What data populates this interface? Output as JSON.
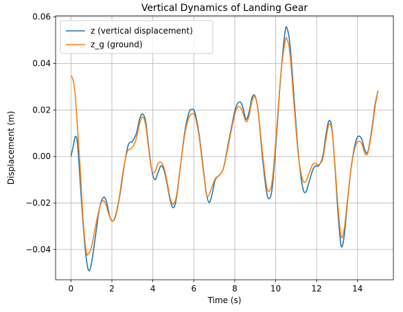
{
  "chart_data": {
    "type": "line",
    "title": "Vertical Dynamics of Landing Gear",
    "xlabel": "Time (s)",
    "ylabel": "Displacement (m)",
    "xlim": [
      -0.75,
      15.75
    ],
    "ylim": [
      -0.053,
      0.0605
    ],
    "xticks": [
      0,
      2,
      4,
      6,
      8,
      10,
      12,
      14
    ],
    "yticks": [
      -0.04,
      -0.02,
      0.0,
      0.02,
      0.04,
      0.06
    ],
    "ytick_labels": [
      "−0.04",
      "−0.02",
      "0.00",
      "0.02",
      "0.04",
      "0.06"
    ],
    "grid": true,
    "legend_position": "top-left",
    "series": [
      {
        "name": "z (vertical displacement)",
        "color": "#1f77b4",
        "points": [
          [
            0.0,
            0.0
          ],
          [
            0.1,
            0.004
          ],
          [
            0.2,
            0.0083
          ],
          [
            0.3,
            0.007
          ],
          [
            0.4,
            -0.004
          ],
          [
            0.55,
            -0.024
          ],
          [
            0.7,
            -0.04
          ],
          [
            0.85,
            -0.0488
          ],
          [
            1.0,
            -0.046
          ],
          [
            1.2,
            -0.034
          ],
          [
            1.4,
            -0.022
          ],
          [
            1.6,
            -0.0175
          ],
          [
            1.75,
            -0.02
          ],
          [
            1.9,
            -0.026
          ],
          [
            2.05,
            -0.0278
          ],
          [
            2.2,
            -0.025
          ],
          [
            2.4,
            -0.016
          ],
          [
            2.6,
            -0.004
          ],
          [
            2.8,
            0.005
          ],
          [
            3.0,
            0.0065
          ],
          [
            3.2,
            0.01
          ],
          [
            3.35,
            0.016
          ],
          [
            3.5,
            0.0183
          ],
          [
            3.65,
            0.015
          ],
          [
            3.8,
            0.004
          ],
          [
            3.95,
            -0.006
          ],
          [
            4.1,
            -0.01
          ],
          [
            4.25,
            -0.007
          ],
          [
            4.4,
            -0.004
          ],
          [
            4.55,
            -0.006
          ],
          [
            4.7,
            -0.012
          ],
          [
            4.85,
            -0.019
          ],
          [
            5.0,
            -0.022
          ],
          [
            5.15,
            -0.018
          ],
          [
            5.35,
            -0.004
          ],
          [
            5.55,
            0.01
          ],
          [
            5.75,
            0.0185
          ],
          [
            5.9,
            0.0203
          ],
          [
            6.05,
            0.019
          ],
          [
            6.25,
            0.01
          ],
          [
            6.45,
            -0.004
          ],
          [
            6.6,
            -0.015
          ],
          [
            6.75,
            -0.0198
          ],
          [
            6.9,
            -0.016
          ],
          [
            7.05,
            -0.01
          ],
          [
            7.25,
            -0.008
          ],
          [
            7.45,
            -0.005
          ],
          [
            7.65,
            0.004
          ],
          [
            7.85,
            0.013
          ],
          [
            8.05,
            0.021
          ],
          [
            8.25,
            0.0235
          ],
          [
            8.4,
            0.021
          ],
          [
            8.55,
            0.016
          ],
          [
            8.7,
            0.019
          ],
          [
            8.85,
            0.0255
          ],
          [
            9.0,
            0.0258
          ],
          [
            9.15,
            0.019
          ],
          [
            9.35,
            0.0
          ],
          [
            9.55,
            -0.015
          ],
          [
            9.7,
            -0.018
          ],
          [
            9.85,
            -0.012
          ],
          [
            10.05,
            0.01
          ],
          [
            10.25,
            0.035
          ],
          [
            10.45,
            0.053
          ],
          [
            10.55,
            0.0552
          ],
          [
            10.7,
            0.048
          ],
          [
            10.9,
            0.025
          ],
          [
            11.1,
            0.002
          ],
          [
            11.3,
            -0.0125
          ],
          [
            11.45,
            -0.0155
          ],
          [
            11.6,
            -0.012
          ],
          [
            11.8,
            -0.006
          ],
          [
            11.95,
            -0.004
          ],
          [
            12.1,
            -0.004
          ],
          [
            12.3,
            0.0
          ],
          [
            12.45,
            0.009
          ],
          [
            12.6,
            0.0153
          ],
          [
            12.75,
            0.012
          ],
          [
            12.9,
            -0.005
          ],
          [
            13.05,
            -0.025
          ],
          [
            13.2,
            -0.0385
          ],
          [
            13.35,
            -0.034
          ],
          [
            13.5,
            -0.02
          ],
          [
            13.7,
            -0.004
          ],
          [
            13.9,
            0.006
          ],
          [
            14.05,
            0.0087
          ],
          [
            14.2,
            0.0075
          ],
          [
            14.35,
            0.003
          ],
          [
            14.5,
            0.002
          ],
          [
            14.7,
            0.012
          ],
          [
            14.85,
            0.022
          ],
          [
            15.0,
            0.0283
          ]
        ]
      },
      {
        "name": "z_g (ground)",
        "color": "#ff7f0e",
        "points": [
          [
            0.0,
            0.0348
          ],
          [
            0.1,
            0.033
          ],
          [
            0.2,
            0.027
          ],
          [
            0.3,
            0.015
          ],
          [
            0.45,
            -0.005
          ],
          [
            0.6,
            -0.028
          ],
          [
            0.75,
            -0.041
          ],
          [
            0.85,
            -0.0418
          ],
          [
            1.0,
            -0.039
          ],
          [
            1.2,
            -0.03
          ],
          [
            1.4,
            -0.022
          ],
          [
            1.55,
            -0.019
          ],
          [
            1.7,
            -0.0205
          ],
          [
            1.85,
            -0.025
          ],
          [
            2.0,
            -0.0278
          ],
          [
            2.15,
            -0.026
          ],
          [
            2.35,
            -0.018
          ],
          [
            2.55,
            -0.006
          ],
          [
            2.75,
            0.002
          ],
          [
            2.95,
            0.0035
          ],
          [
            3.15,
            0.0065
          ],
          [
            3.35,
            0.014
          ],
          [
            3.5,
            0.017
          ],
          [
            3.65,
            0.0135
          ],
          [
            3.8,
            0.003
          ],
          [
            3.95,
            -0.006
          ],
          [
            4.1,
            -0.0065
          ],
          [
            4.25,
            -0.003
          ],
          [
            4.4,
            -0.0025
          ],
          [
            4.55,
            -0.005
          ],
          [
            4.7,
            -0.011
          ],
          [
            4.85,
            -0.018
          ],
          [
            5.0,
            -0.0205
          ],
          [
            5.15,
            -0.017
          ],
          [
            5.35,
            -0.004
          ],
          [
            5.55,
            0.009
          ],
          [
            5.75,
            0.0165
          ],
          [
            5.9,
            0.0183
          ],
          [
            6.05,
            0.0175
          ],
          [
            6.25,
            0.009
          ],
          [
            6.45,
            -0.005
          ],
          [
            6.6,
            -0.0155
          ],
          [
            6.7,
            -0.0172
          ],
          [
            6.85,
            -0.014
          ],
          [
            7.05,
            -0.0095
          ],
          [
            7.25,
            -0.008
          ],
          [
            7.45,
            -0.005
          ],
          [
            7.65,
            0.003
          ],
          [
            7.85,
            0.012
          ],
          [
            8.05,
            0.0195
          ],
          [
            8.2,
            0.0215
          ],
          [
            8.35,
            0.02
          ],
          [
            8.55,
            0.015
          ],
          [
            8.7,
            0.0175
          ],
          [
            8.85,
            0.024
          ],
          [
            9.0,
            0.0255
          ],
          [
            9.15,
            0.019
          ],
          [
            9.35,
            0.002
          ],
          [
            9.55,
            -0.0125
          ],
          [
            9.7,
            -0.0148
          ],
          [
            9.85,
            -0.009
          ],
          [
            10.05,
            0.012
          ],
          [
            10.25,
            0.035
          ],
          [
            10.45,
            0.049
          ],
          [
            10.55,
            0.0505
          ],
          [
            10.7,
            0.044
          ],
          [
            10.9,
            0.022
          ],
          [
            11.1,
            0.001
          ],
          [
            11.3,
            -0.0095
          ],
          [
            11.45,
            -0.011
          ],
          [
            11.6,
            -0.008
          ],
          [
            11.8,
            -0.0035
          ],
          [
            11.95,
            -0.003
          ],
          [
            12.1,
            -0.0035
          ],
          [
            12.3,
            -0.001
          ],
          [
            12.45,
            0.007
          ],
          [
            12.6,
            0.0138
          ],
          [
            12.75,
            0.011
          ],
          [
            12.9,
            -0.004
          ],
          [
            13.05,
            -0.022
          ],
          [
            13.2,
            -0.0345
          ],
          [
            13.35,
            -0.031
          ],
          [
            13.5,
            -0.019
          ],
          [
            13.7,
            -0.004
          ],
          [
            13.9,
            0.0045
          ],
          [
            14.05,
            0.0065
          ],
          [
            14.2,
            0.0055
          ],
          [
            14.35,
            0.0015
          ],
          [
            14.5,
            0.0015
          ],
          [
            14.7,
            0.011
          ],
          [
            14.85,
            0.021
          ],
          [
            15.0,
            0.0283
          ]
        ]
      }
    ]
  }
}
